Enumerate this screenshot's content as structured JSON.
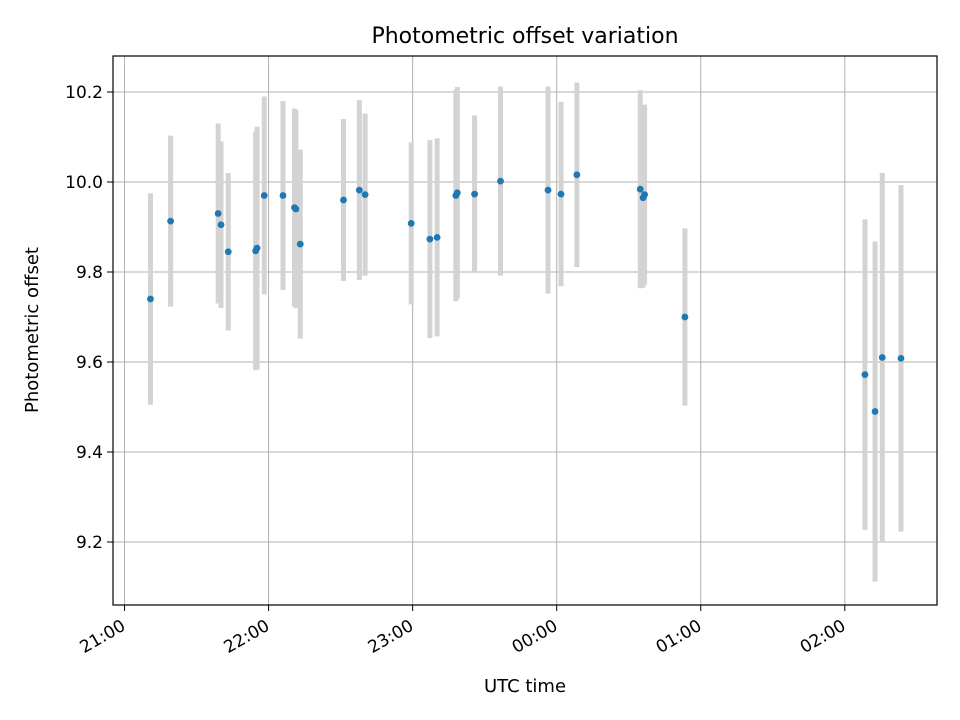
{
  "chart_data": {
    "type": "scatter",
    "title": "Photometric offset variation",
    "xlabel": "UTC time",
    "ylabel": "Photometric offset",
    "grid": true,
    "x_tick_labels": [
      "21:00",
      "22:00",
      "23:00",
      "00:00",
      "01:00",
      "02:00"
    ],
    "x_tick_hours": [
      21,
      22,
      23,
      24,
      25,
      26
    ],
    "y_ticks": [
      9.2,
      9.4,
      9.6,
      9.8,
      10.0,
      10.2
    ],
    "y_tick_labels": [
      "9.2",
      "9.4",
      "9.6",
      "9.8",
      "10.0",
      "10.2"
    ],
    "xlim_hours": [
      20.92,
      26.64
    ],
    "ylim": [
      9.06,
      10.28
    ],
    "colors": {
      "point": "#1f77b4",
      "errorbar": "#d3d3d3",
      "grid": "#b0b0b0"
    },
    "points": [
      {
        "t": 21.18,
        "y": 9.74,
        "err": 0.235
      },
      {
        "t": 21.32,
        "y": 9.913,
        "err": 0.19
      },
      {
        "t": 21.65,
        "y": 9.93,
        "err": 0.2
      },
      {
        "t": 21.67,
        "y": 9.905,
        "err": 0.185
      },
      {
        "t": 21.72,
        "y": 9.845,
        "err": 0.175
      },
      {
        "t": 21.91,
        "y": 9.847,
        "err": 0.265
      },
      {
        "t": 21.92,
        "y": 9.853,
        "err": 0.27
      },
      {
        "t": 21.97,
        "y": 9.97,
        "err": 0.22
      },
      {
        "t": 22.1,
        "y": 9.97,
        "err": 0.21
      },
      {
        "t": 22.18,
        "y": 9.943,
        "err": 0.22
      },
      {
        "t": 22.19,
        "y": 9.94,
        "err": 0.22
      },
      {
        "t": 22.22,
        "y": 9.862,
        "err": 0.21
      },
      {
        "t": 22.52,
        "y": 9.96,
        "err": 0.18
      },
      {
        "t": 22.63,
        "y": 9.982,
        "err": 0.2
      },
      {
        "t": 22.67,
        "y": 9.972,
        "err": 0.18
      },
      {
        "t": 22.99,
        "y": 9.908,
        "err": 0.18
      },
      {
        "t": 23.12,
        "y": 9.873,
        "err": 0.22
      },
      {
        "t": 23.17,
        "y": 9.877,
        "err": 0.22
      },
      {
        "t": 23.3,
        "y": 9.97,
        "err": 0.235
      },
      {
        "t": 23.31,
        "y": 9.976,
        "err": 0.235
      },
      {
        "t": 23.43,
        "y": 9.973,
        "err": 0.175
      },
      {
        "t": 23.61,
        "y": 10.002,
        "err": 0.21
      },
      {
        "t": 23.94,
        "y": 9.982,
        "err": 0.23
      },
      {
        "t": 24.03,
        "y": 9.973,
        "err": 0.205
      },
      {
        "t": 24.14,
        "y": 10.016,
        "err": 0.205
      },
      {
        "t": 24.58,
        "y": 9.984,
        "err": 0.22
      },
      {
        "t": 24.6,
        "y": 9.965,
        "err": 0.2
      },
      {
        "t": 24.61,
        "y": 9.972,
        "err": 0.2
      },
      {
        "t": 24.89,
        "y": 9.7,
        "err": 0.197
      },
      {
        "t": 26.14,
        "y": 9.572,
        "err": 0.345
      },
      {
        "t": 26.21,
        "y": 9.49,
        "err": 0.378
      },
      {
        "t": 26.26,
        "y": 9.61,
        "err": 0.41
      },
      {
        "t": 26.39,
        "y": 9.608,
        "err": 0.385
      }
    ]
  }
}
